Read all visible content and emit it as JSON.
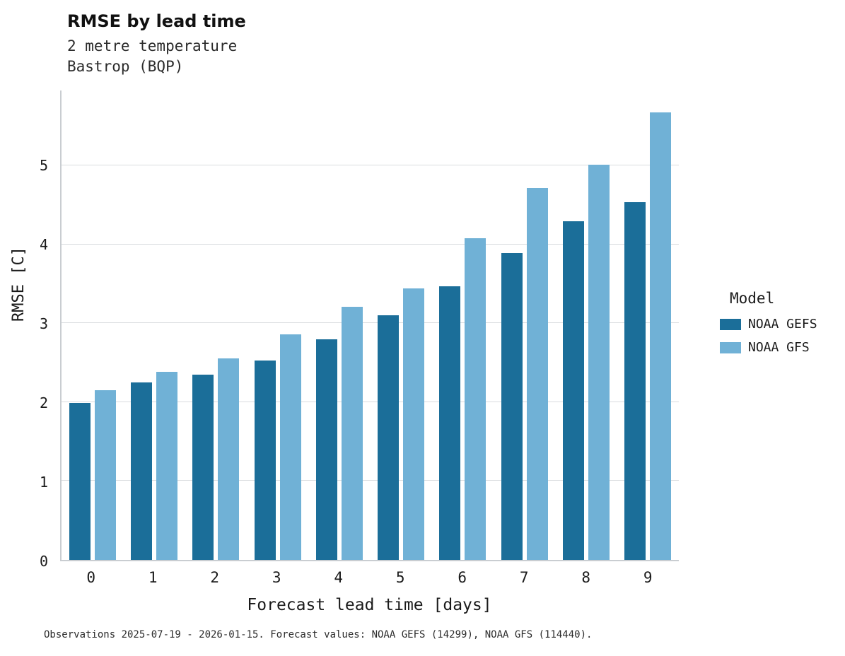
{
  "header": {
    "title": "RMSE by lead time",
    "subtitle_line1": "2 metre temperature",
    "subtitle_line2": "Bastrop (BQP)"
  },
  "legend": {
    "title": "Model",
    "items": [
      {
        "label": "NOAA GEFS",
        "color": "#1b6e99"
      },
      {
        "label": "NOAA GFS",
        "color": "#70b1d6"
      }
    ]
  },
  "caption": "Observations 2025-07-19 - 2026-01-15. Forecast values: NOAA GEFS (14299), NOAA GFS (114440).",
  "chart_data": {
    "type": "bar",
    "title": "RMSE by lead time",
    "subtitle": [
      "2 metre temperature",
      "Bastrop (BQP)"
    ],
    "categories": [
      "0",
      "1",
      "2",
      "3",
      "4",
      "5",
      "6",
      "7",
      "8",
      "9"
    ],
    "series": [
      {
        "name": "NOAA GEFS",
        "color": "#1b6e99",
        "values": [
          1.99,
          2.25,
          2.35,
          2.53,
          2.8,
          3.1,
          3.47,
          3.89,
          4.29,
          4.53
        ]
      },
      {
        "name": "NOAA GFS",
        "color": "#70b1d6",
        "values": [
          2.15,
          2.38,
          2.55,
          2.86,
          3.21,
          3.44,
          4.08,
          4.71,
          5.01,
          5.67
        ]
      }
    ],
    "xlabel": "Forecast lead time [days]",
    "ylabel": "RMSE [C]",
    "ylim": [
      0,
      5.95
    ],
    "yticks": [
      0,
      1,
      2,
      3,
      4,
      5
    ],
    "grid": "horizontal",
    "legend_title": "Model",
    "legend_position": "right"
  }
}
